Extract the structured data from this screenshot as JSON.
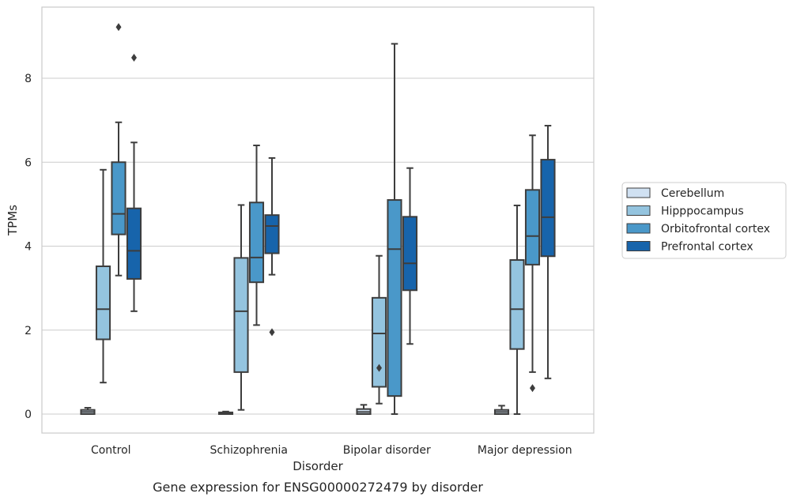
{
  "chart_data": {
    "type": "box",
    "caption": "Gene expression for ENSG00000272479 by disorder",
    "xlabel": "Disorder",
    "ylabel": "TPMs",
    "ylim": [
      -0.45,
      9.65
    ],
    "yticks": [
      0,
      2,
      4,
      6,
      8
    ],
    "grid": "horizontal",
    "legend_position": "right",
    "categories": [
      "Control",
      "Schizophrenia",
      "Bipolar disorder",
      "Major depression"
    ],
    "series": [
      {
        "name": "Cerebellum",
        "color": "#d0e1f2",
        "boxes": [
          {
            "whislo": 0.0,
            "q1": 0.0,
            "med": 0.05,
            "q3": 0.1,
            "whishi": 0.15,
            "fliers": []
          },
          {
            "whislo": 0.0,
            "q1": 0.0,
            "med": 0.02,
            "q3": 0.04,
            "whishi": 0.06,
            "fliers": []
          },
          {
            "whislo": 0.0,
            "q1": 0.0,
            "med": 0.05,
            "q3": 0.12,
            "whishi": 0.22,
            "fliers": []
          },
          {
            "whislo": 0.0,
            "q1": 0.0,
            "med": 0.05,
            "q3": 0.1,
            "whishi": 0.2,
            "fliers": []
          }
        ]
      },
      {
        "name": "Hipppocampus",
        "color": "#94c4df",
        "boxes": [
          {
            "whislo": 0.75,
            "q1": 1.78,
            "med": 2.5,
            "q3": 3.52,
            "whishi": 5.82,
            "fliers": []
          },
          {
            "whislo": 0.1,
            "q1": 1.0,
            "med": 2.45,
            "q3": 3.72,
            "whishi": 4.98,
            "fliers": []
          },
          {
            "whislo": 0.25,
            "q1": 0.65,
            "med": 1.92,
            "q3": 2.77,
            "whishi": 3.77,
            "fliers": [
              1.1
            ]
          },
          {
            "whislo": 0.0,
            "q1": 1.55,
            "med": 2.5,
            "q3": 3.67,
            "whishi": 4.97,
            "fliers": []
          }
        ]
      },
      {
        "name": "Orbitofrontal cortex",
        "color": "#4a98c9",
        "boxes": [
          {
            "whislo": 3.3,
            "q1": 4.28,
            "med": 4.77,
            "q3": 6.0,
            "whishi": 6.95,
            "fliers": [
              9.22
            ]
          },
          {
            "whislo": 2.12,
            "q1": 3.14,
            "med": 3.73,
            "q3": 5.04,
            "whishi": 6.4,
            "fliers": []
          },
          {
            "whislo": 0.0,
            "q1": 0.43,
            "med": 3.93,
            "q3": 5.1,
            "whishi": 8.82,
            "fliers": []
          },
          {
            "whislo": 1.0,
            "q1": 3.56,
            "med": 4.24,
            "q3": 5.34,
            "whishi": 6.64,
            "fliers": [
              0.62
            ]
          }
        ]
      },
      {
        "name": "Prefrontal cortex",
        "color": "#1764ab",
        "boxes": [
          {
            "whislo": 2.45,
            "q1": 3.22,
            "med": 3.89,
            "q3": 4.9,
            "whishi": 6.47,
            "fliers": [
              8.49
            ]
          },
          {
            "whislo": 3.32,
            "q1": 3.83,
            "med": 4.48,
            "q3": 4.74,
            "whishi": 6.1,
            "fliers": [
              1.95
            ]
          },
          {
            "whislo": 1.67,
            "q1": 2.95,
            "med": 3.59,
            "q3": 4.7,
            "whishi": 5.86,
            "fliers": []
          },
          {
            "whislo": 0.85,
            "q1": 3.76,
            "med": 4.69,
            "q3": 6.06,
            "whishi": 6.87,
            "fliers": []
          }
        ]
      }
    ]
  }
}
